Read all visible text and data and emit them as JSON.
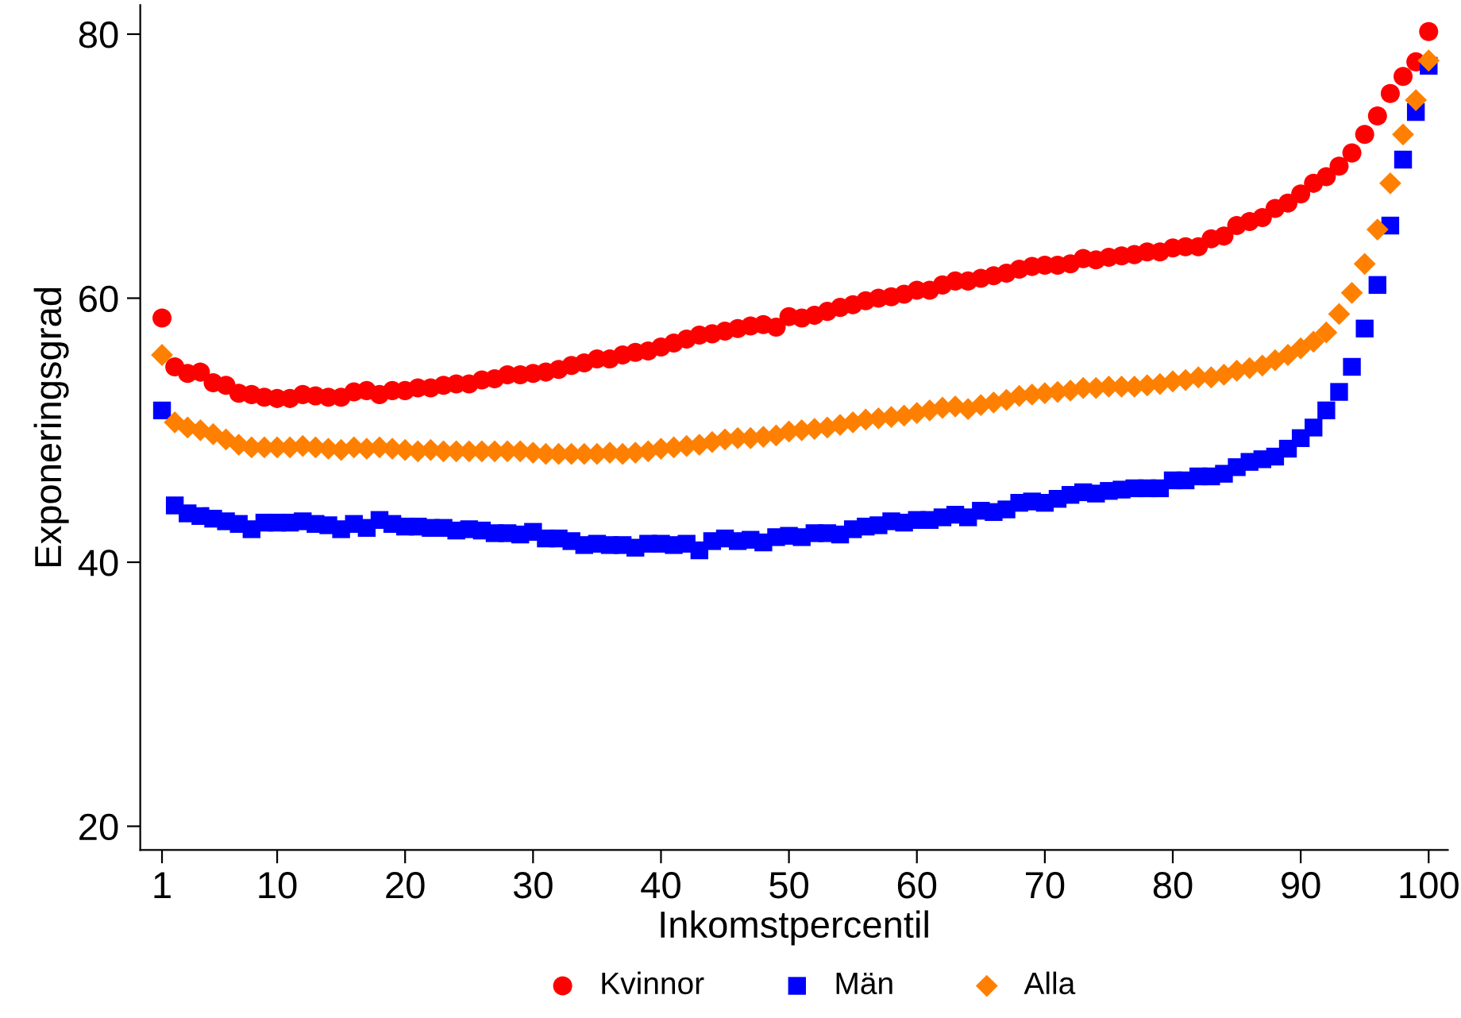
{
  "chart_data": {
    "type": "scatter",
    "xlabel": "Inkomstpercentil",
    "ylabel": "Exponeringsgrad",
    "xlim": [
      -0.7,
      101.5
    ],
    "ylim": [
      18.2,
      82.2
    ],
    "xticks": [
      1,
      10,
      20,
      30,
      40,
      50,
      60,
      70,
      80,
      90,
      100
    ],
    "yticks": [
      20,
      40,
      60,
      80
    ],
    "grid": false,
    "legend": "bottom",
    "x": [
      1,
      2,
      3,
      4,
      5,
      6,
      7,
      8,
      9,
      10,
      11,
      12,
      13,
      14,
      15,
      16,
      17,
      18,
      19,
      20,
      21,
      22,
      23,
      24,
      25,
      26,
      27,
      28,
      29,
      30,
      31,
      32,
      33,
      34,
      35,
      36,
      37,
      38,
      39,
      40,
      41,
      42,
      43,
      44,
      45,
      46,
      47,
      48,
      49,
      50,
      51,
      52,
      53,
      54,
      55,
      56,
      57,
      58,
      59,
      60,
      61,
      62,
      63,
      64,
      65,
      66,
      67,
      68,
      69,
      70,
      71,
      72,
      73,
      74,
      75,
      76,
      77,
      78,
      79,
      80,
      81,
      82,
      83,
      84,
      85,
      86,
      87,
      88,
      89,
      90,
      91,
      92,
      93,
      94,
      95,
      96,
      97,
      98,
      99,
      100
    ],
    "series": [
      {
        "name": "Kvinnor",
        "color": "#ff0000",
        "marker": "circle",
        "values": [
          58.5,
          54.8,
          54.3,
          54.4,
          53.6,
          53.4,
          52.8,
          52.7,
          52.5,
          52.4,
          52.4,
          52.7,
          52.6,
          52.5,
          52.5,
          52.9,
          53.0,
          52.7,
          53.0,
          53.0,
          53.2,
          53.2,
          53.4,
          53.5,
          53.5,
          53.8,
          53.9,
          54.2,
          54.2,
          54.3,
          54.4,
          54.6,
          54.9,
          55.1,
          55.4,
          55.4,
          55.7,
          55.9,
          56.0,
          56.3,
          56.6,
          56.9,
          57.2,
          57.3,
          57.5,
          57.7,
          57.9,
          58.0,
          57.8,
          58.6,
          58.5,
          58.7,
          59.0,
          59.3,
          59.5,
          59.8,
          60.0,
          60.1,
          60.3,
          60.6,
          60.6,
          61.0,
          61.3,
          61.3,
          61.5,
          61.7,
          61.9,
          62.2,
          62.4,
          62.5,
          62.5,
          62.6,
          63.0,
          62.9,
          63.1,
          63.2,
          63.3,
          63.5,
          63.5,
          63.8,
          63.9,
          63.9,
          64.5,
          64.7,
          65.5,
          65.8,
          66.1,
          66.8,
          67.2,
          67.9,
          68.7,
          69.2,
          70.0,
          71.0,
          72.4,
          73.8,
          75.5,
          76.8,
          77.9,
          80.2
        ]
      },
      {
        "name": "Män",
        "color": "#0000ff",
        "marker": "square",
        "values": [
          51.5,
          44.3,
          43.7,
          43.5,
          43.3,
          43.1,
          42.9,
          42.5,
          43.0,
          43.0,
          43.0,
          43.1,
          42.9,
          42.8,
          42.5,
          42.9,
          42.6,
          43.2,
          42.9,
          42.7,
          42.7,
          42.6,
          42.6,
          42.4,
          42.5,
          42.4,
          42.2,
          42.2,
          42.1,
          42.3,
          41.8,
          41.8,
          41.6,
          41.3,
          41.4,
          41.3,
          41.3,
          41.1,
          41.4,
          41.4,
          41.3,
          41.4,
          40.9,
          41.6,
          41.8,
          41.6,
          41.7,
          41.5,
          41.9,
          42.0,
          41.9,
          42.2,
          42.2,
          42.1,
          42.5,
          42.7,
          42.8,
          43.1,
          43.0,
          43.2,
          43.2,
          43.4,
          43.6,
          43.4,
          43.9,
          43.8,
          44.0,
          44.5,
          44.6,
          44.5,
          44.8,
          45.1,
          45.3,
          45.2,
          45.4,
          45.5,
          45.6,
          45.6,
          45.6,
          46.2,
          46.2,
          46.5,
          46.5,
          46.7,
          47.2,
          47.6,
          47.8,
          48.0,
          48.6,
          49.4,
          50.2,
          51.5,
          52.9,
          54.8,
          57.7,
          61.0,
          65.5,
          70.5,
          74.1,
          77.6
        ]
      },
      {
        "name": "Alla",
        "color": "#ff8000",
        "marker": "diamond",
        "values": [
          55.7,
          50.6,
          50.2,
          50.0,
          49.7,
          49.3,
          48.9,
          48.7,
          48.7,
          48.7,
          48.7,
          48.8,
          48.7,
          48.6,
          48.5,
          48.7,
          48.6,
          48.7,
          48.6,
          48.5,
          48.4,
          48.5,
          48.4,
          48.4,
          48.4,
          48.4,
          48.4,
          48.4,
          48.4,
          48.3,
          48.2,
          48.2,
          48.2,
          48.2,
          48.2,
          48.3,
          48.2,
          48.3,
          48.4,
          48.6,
          48.7,
          48.8,
          48.9,
          49.1,
          49.3,
          49.4,
          49.4,
          49.5,
          49.6,
          49.9,
          50.0,
          50.1,
          50.2,
          50.4,
          50.6,
          50.8,
          50.9,
          51.0,
          51.1,
          51.3,
          51.5,
          51.7,
          51.8,
          51.6,
          51.9,
          52.1,
          52.3,
          52.6,
          52.7,
          52.8,
          52.9,
          53.0,
          53.2,
          53.2,
          53.3,
          53.3,
          53.3,
          53.4,
          53.5,
          53.7,
          53.8,
          54.0,
          54.0,
          54.2,
          54.5,
          54.7,
          54.9,
          55.3,
          55.7,
          56.2,
          56.7,
          57.4,
          58.8,
          60.4,
          62.6,
          65.2,
          68.7,
          72.4,
          75.0,
          78.0
        ]
      }
    ]
  }
}
